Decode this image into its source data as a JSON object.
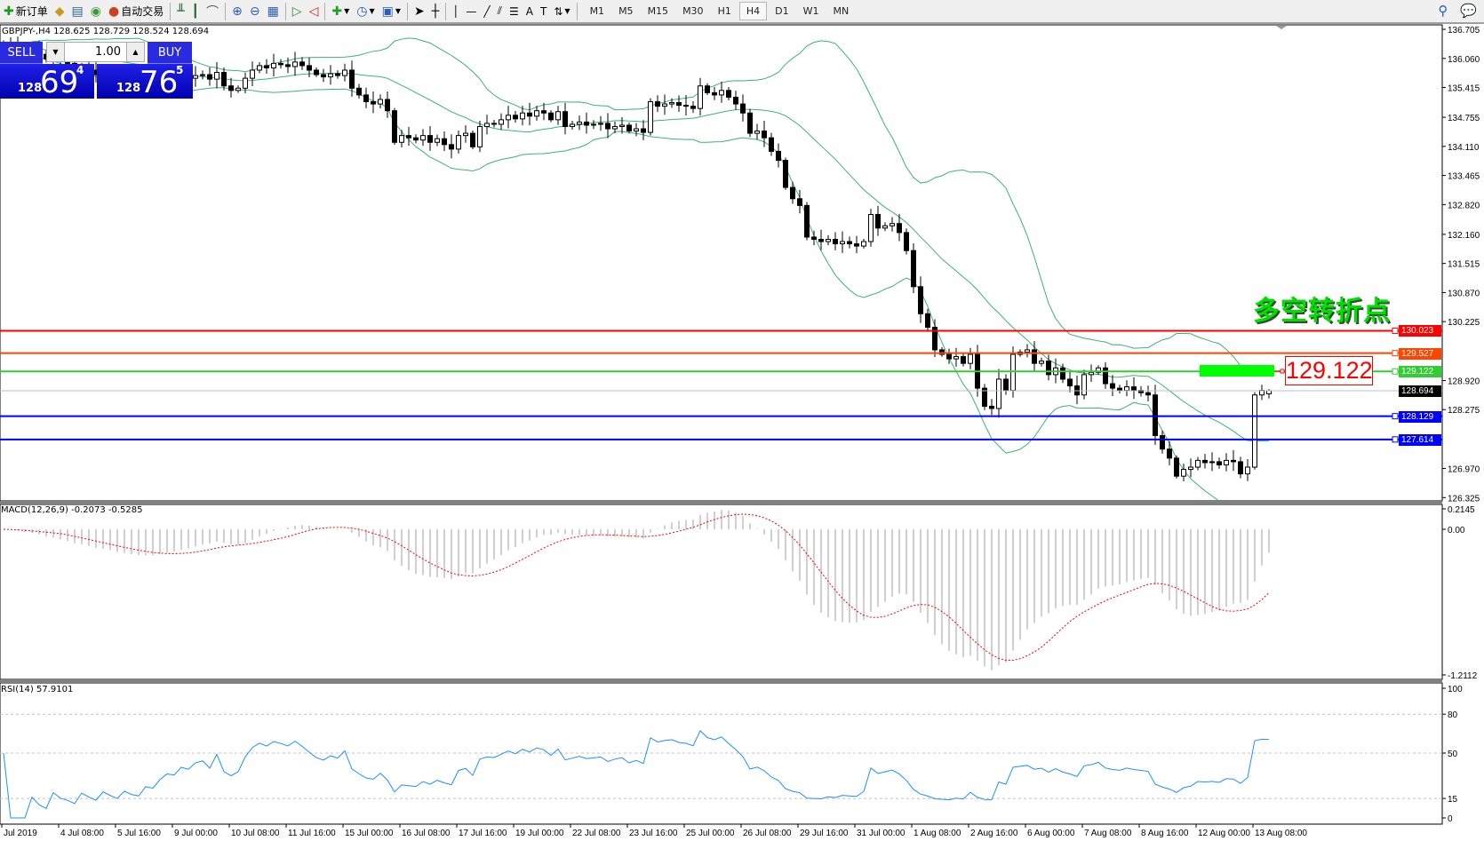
{
  "toolbar": {
    "new_order": "新订单",
    "auto_trading": "自动交易",
    "timeframes": [
      "M1",
      "M5",
      "M15",
      "M30",
      "H1",
      "H4",
      "D1",
      "W1",
      "MN"
    ],
    "active_timeframe": "H4"
  },
  "symbol_info": "GBPJPY-,H4  128.625 128.729 128.524 128.694",
  "trade_panel": {
    "sell_label": "SELL",
    "buy_label": "BUY",
    "lot": "1.00",
    "sell_prefix": "128",
    "sell_big": "69",
    "sell_sup": "4",
    "buy_prefix": "128",
    "buy_big": "76",
    "buy_sup": "5"
  },
  "annotation": {
    "title": "多空转折点",
    "price_box": "129.122"
  },
  "colors": {
    "accent_blue": "#0000ff",
    "line_red": "#ff0000",
    "line_orange": "#ff4500",
    "line_green": "#32cd32",
    "bands": "#3cb371",
    "rsi": "#1e90ff",
    "macd_signal": "#ff0000"
  },
  "chart_data": [
    {
      "type": "candlestick",
      "symbol": "GBPJPY-",
      "timeframe": "H4",
      "y_ticks": [
        "136.705",
        "136.060",
        "135.415",
        "134.755",
        "134.110",
        "133.465",
        "132.820",
        "132.160",
        "131.515",
        "130.870",
        "130.225",
        "128.920",
        "128.275",
        "126.970",
        "126.325"
      ],
      "ylim": [
        126.325,
        136.705
      ],
      "x_ticks": [
        "Jul 2019",
        "4 Jul 08:00",
        "5 Jul 16:00",
        "9 Jul 00:00",
        "10 Jul 08:00",
        "11 Jul 16:00",
        "15 Jul 00:00",
        "16 Jul 08:00",
        "17 Jul 16:00",
        "19 Jul 00:00",
        "22 Jul 08:00",
        "23 Jul 16:00",
        "25 Jul 00:00",
        "26 Jul 08:00",
        "29 Jul 16:00",
        "31 Jul 00:00",
        "1 Aug 08:00",
        "2 Aug 16:00",
        "6 Aug 00:00",
        "7 Aug 08:00",
        "8 Aug 16:00",
        "12 Aug 00:00",
        "13 Aug 08:00"
      ],
      "closes": [
        136.4,
        136.35,
        136.3,
        136.22,
        136.25,
        136.15,
        136.05,
        136.1,
        136.0,
        135.95,
        135.85,
        135.9,
        135.8,
        135.7,
        135.75,
        135.65,
        135.55,
        135.6,
        135.5,
        135.45,
        135.52,
        135.48,
        135.55,
        135.6,
        135.58,
        135.65,
        135.62,
        135.68,
        135.7,
        135.6,
        135.75,
        135.45,
        135.35,
        135.4,
        135.62,
        135.8,
        135.9,
        135.85,
        135.95,
        135.92,
        135.88,
        135.98,
        135.9,
        135.8,
        135.7,
        135.65,
        135.72,
        135.68,
        135.8,
        135.4,
        135.25,
        135.1,
        135.05,
        135.15,
        134.9,
        134.2,
        134.35,
        134.3,
        134.25,
        134.35,
        134.2,
        134.28,
        134.15,
        134.05,
        134.35,
        134.4,
        134.1,
        134.55,
        134.62,
        134.6,
        134.7,
        134.8,
        134.72,
        134.85,
        134.78,
        134.9,
        134.85,
        134.7,
        134.88,
        134.55,
        134.6,
        134.65,
        134.58,
        134.6,
        134.62,
        134.5,
        134.55,
        134.58,
        134.45,
        134.5,
        134.42,
        135.1,
        135.0,
        135.05,
        135.08,
        135.02,
        135.0,
        134.95,
        135.45,
        135.3,
        135.25,
        135.35,
        135.2,
        135.05,
        134.85,
        134.4,
        134.45,
        134.3,
        134.0,
        133.8,
        133.2,
        132.95,
        132.8,
        132.1,
        132.05,
        132.0,
        132.05,
        131.95,
        132.0,
        131.95,
        131.9,
        132.0,
        132.6,
        132.3,
        132.35,
        132.4,
        132.2,
        131.8,
        131.0,
        130.4,
        130.1,
        129.6,
        129.5,
        129.4,
        129.45,
        129.3,
        129.5,
        128.75,
        128.35,
        128.3,
        128.95,
        128.7,
        129.5,
        129.55,
        129.6,
        129.3,
        129.35,
        129.05,
        129.2,
        128.95,
        128.8,
        128.6,
        129.05,
        129.1,
        129.2,
        128.85,
        128.75,
        128.7,
        128.78,
        128.7,
        128.65,
        128.6,
        127.7,
        127.4,
        127.2,
        126.8,
        126.95,
        127.0,
        127.15,
        127.1,
        127.12,
        127.05,
        127.15,
        127.12,
        126.85,
        127.0,
        128.6,
        128.7,
        128.694
      ],
      "last_bar": {
        "open": 128.625,
        "high": 128.729,
        "low": 128.524,
        "close": 128.694
      },
      "indicator": "Bollinger Bands",
      "levels": [
        {
          "price": "130.023",
          "color": "#ff0000"
        },
        {
          "price": "129.527",
          "color": "#ff4500"
        },
        {
          "price": "129.122",
          "color": "#32cd32"
        },
        {
          "price": "128.694",
          "color": "#000000",
          "bid": true
        },
        {
          "price": "128.129",
          "color": "#0000ff"
        },
        {
          "price": "127.614",
          "color": "#0000ff"
        }
      ]
    },
    {
      "type": "bar",
      "title": "MACD(12,26,9) -0.2073 -0.5285",
      "y_ticks": [
        "0.2145",
        "0.00",
        "-1.2112"
      ],
      "ylim": [
        -1.2112,
        0.2145
      ]
    },
    {
      "type": "line",
      "title": "RSI(14) 57.9101",
      "y_ticks": [
        "100",
        "80",
        "50",
        "15",
        "0"
      ],
      "levels": [
        80,
        50,
        15
      ],
      "ylim": [
        0,
        100
      ]
    }
  ]
}
